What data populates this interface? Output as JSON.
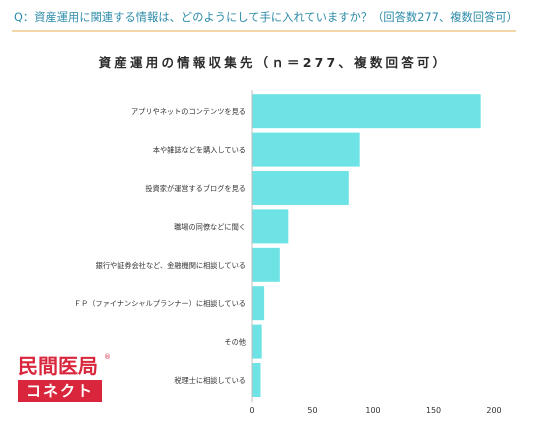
{
  "question": "Q：資産運用に関連する情報は、どのようにして手に入れていますか？（回答数277、複数回答可）",
  "logo": {
    "top_text": "民間医局",
    "bottom_text": "コネクト",
    "mark": "®"
  },
  "colors": {
    "bar": "#6ee3e6",
    "question": "#2a8aa8",
    "rule": "#f1d8a6",
    "brand": "#d9263c",
    "axis": "#bfbfbf"
  },
  "chart_data": {
    "type": "bar",
    "orientation": "horizontal",
    "title": "資産運用の情報収集先（ｎ＝277、複数回答可）",
    "categories": [
      "アプリやネットのコンテンツを見る",
      "本や雑誌などを購入している",
      "投資家が運営するブログを見る",
      "職場の同僚などに聞く",
      "銀行や証券会社など、金融機関に相談している",
      "ＦＰ（ファイナンシャルプランナー）に相談している",
      "その他",
      "税理士に相談している"
    ],
    "values": [
      189,
      89,
      80,
      30,
      23,
      10,
      8,
      7
    ],
    "xlim": [
      0,
      200
    ],
    "xticks": [
      "0",
      "50",
      "100",
      "150",
      "200"
    ],
    "xlabel": "",
    "ylabel": "",
    "grid": false,
    "legend": "none"
  }
}
